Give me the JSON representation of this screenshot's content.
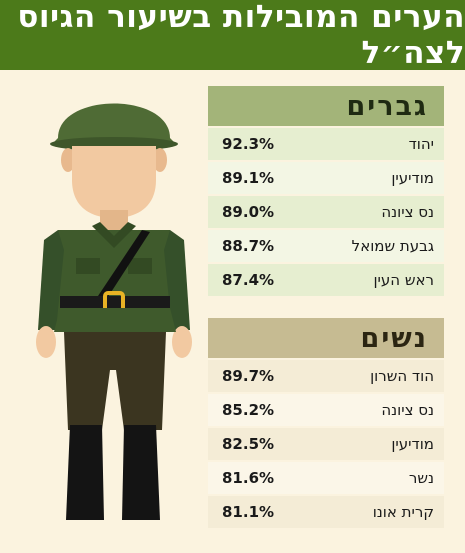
{
  "title": "הערים המובילות בשיעור הגיוס לצה״ל",
  "men": {
    "header": "גברים",
    "rows": [
      {
        "city": "יהוד",
        "pct": "92.3%"
      },
      {
        "city": "מודיעין",
        "pct": "89.1%"
      },
      {
        "city": "נס ציונה",
        "pct": "89.0%"
      },
      {
        "city": "גבעת שמואל",
        "pct": "88.7%"
      },
      {
        "city": "ראש העין",
        "pct": "87.4%"
      }
    ]
  },
  "women": {
    "header": "נשים",
    "rows": [
      {
        "city": "הוד השרון",
        "pct": "89.7%"
      },
      {
        "city": "נס ציונה",
        "pct": "85.2%"
      },
      {
        "city": "מודיעין",
        "pct": "82.5%"
      },
      {
        "city": "נשר",
        "pct": "81.6%"
      },
      {
        "city": "קרית אונו",
        "pct": "81.1%"
      }
    ]
  },
  "colors": {
    "title_bg": "#4c7a1a",
    "men_header": "#a3b479",
    "women_header": "#c6bb92",
    "background": "#fbf3df"
  }
}
